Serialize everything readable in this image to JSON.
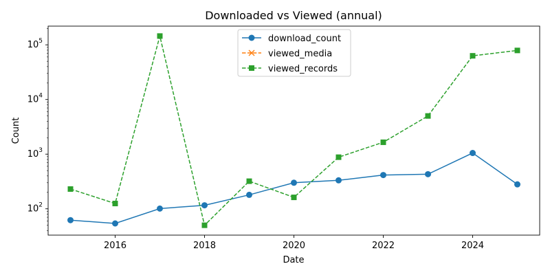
{
  "chart_data": {
    "type": "line",
    "title": "Downloaded vs Viewed (annual)",
    "xlabel": "Date",
    "ylabel": "Count",
    "yscale": "log",
    "x": [
      2015,
      2016,
      2017,
      2018,
      2019,
      2020,
      2021,
      2022,
      2023,
      2024,
      2025
    ],
    "xticks": [
      "2016",
      "2018",
      "2020",
      "2022",
      "2024"
    ],
    "xlim": [
      2014.5,
      2025.5
    ],
    "ylim": [
      33,
      220000
    ],
    "yticks": [
      {
        "base": "10",
        "exp": "2"
      },
      {
        "base": "10",
        "exp": "3"
      },
      {
        "base": "10",
        "exp": "4"
      },
      {
        "base": "10",
        "exp": "5"
      }
    ],
    "legend_position": "top-center",
    "series": [
      {
        "name": "download_count",
        "color": "#1f77b4",
        "marker": "circle",
        "line_style": "solid",
        "values": [
          62,
          54,
          101,
          116,
          180,
          300,
          332,
          415,
          430,
          1050,
          280
        ]
      },
      {
        "name": "viewed_media",
        "color": "#ff7f0e",
        "marker": "x",
        "line_style": "dashed",
        "values": [
          null,
          null,
          null,
          null,
          null,
          null,
          null,
          null,
          null,
          null,
          null
        ]
      },
      {
        "name": "viewed_records",
        "color": "#2ca02c",
        "marker": "square",
        "line_style": "dashed",
        "values": [
          230,
          125,
          145000,
          50,
          320,
          162,
          880,
          1650,
          5000,
          63000,
          79000
        ]
      }
    ]
  }
}
